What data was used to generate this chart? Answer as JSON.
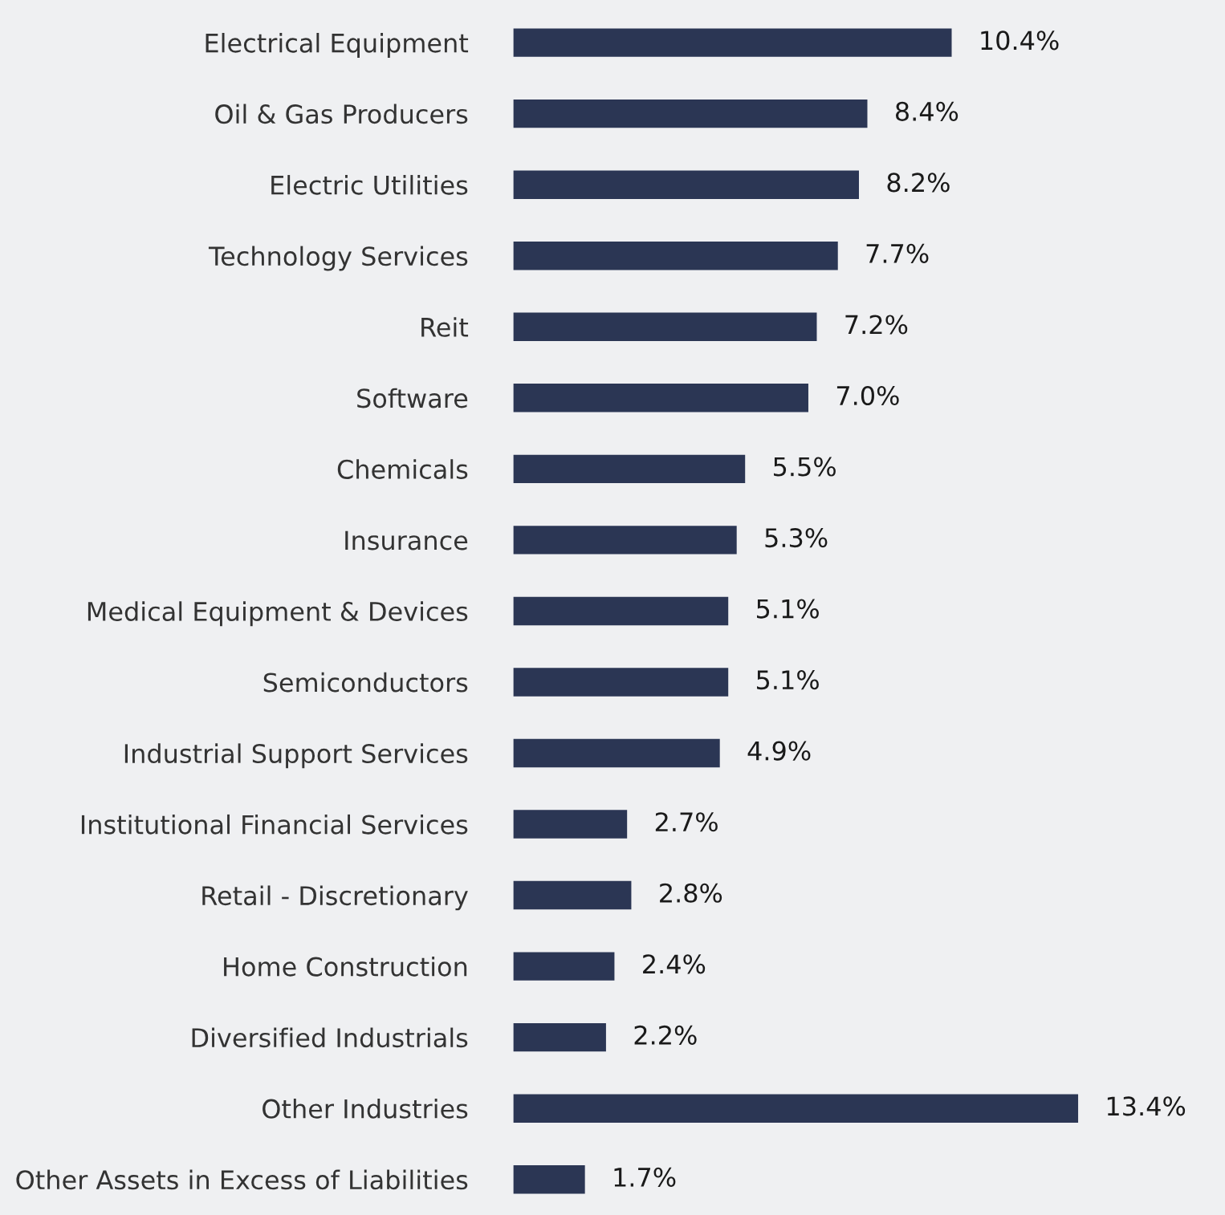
{
  "chart_data": {
    "type": "bar",
    "orientation": "horizontal",
    "categories": [
      "Electrical Equipment",
      "Oil & Gas Producers",
      "Electric Utilities",
      "Technology Services",
      "Reit",
      "Software",
      "Chemicals",
      "Insurance",
      "Medical Equipment & Devices",
      "Semiconductors",
      "Industrial Support Services",
      "Institutional Financial Services",
      "Retail - Discretionary",
      "Home Construction",
      "Diversified Industrials",
      "Other Industries",
      "Other Assets in Excess of Liabilities"
    ],
    "values": [
      10.4,
      8.4,
      8.2,
      7.7,
      7.2,
      7.0,
      5.5,
      5.3,
      5.1,
      5.1,
      4.9,
      2.7,
      2.8,
      2.4,
      2.2,
      13.4,
      1.7
    ],
    "value_labels": [
      "10.4%",
      "8.4%",
      "8.2%",
      "7.7%",
      "7.2%",
      "7.0%",
      "5.5%",
      "5.3%",
      "5.1%",
      "5.1%",
      "4.9%",
      "2.7%",
      "2.8%",
      "2.4%",
      "2.2%",
      "13.4%",
      "1.7%"
    ],
    "color": "#2b3654",
    "grid": false,
    "legend": false
  }
}
